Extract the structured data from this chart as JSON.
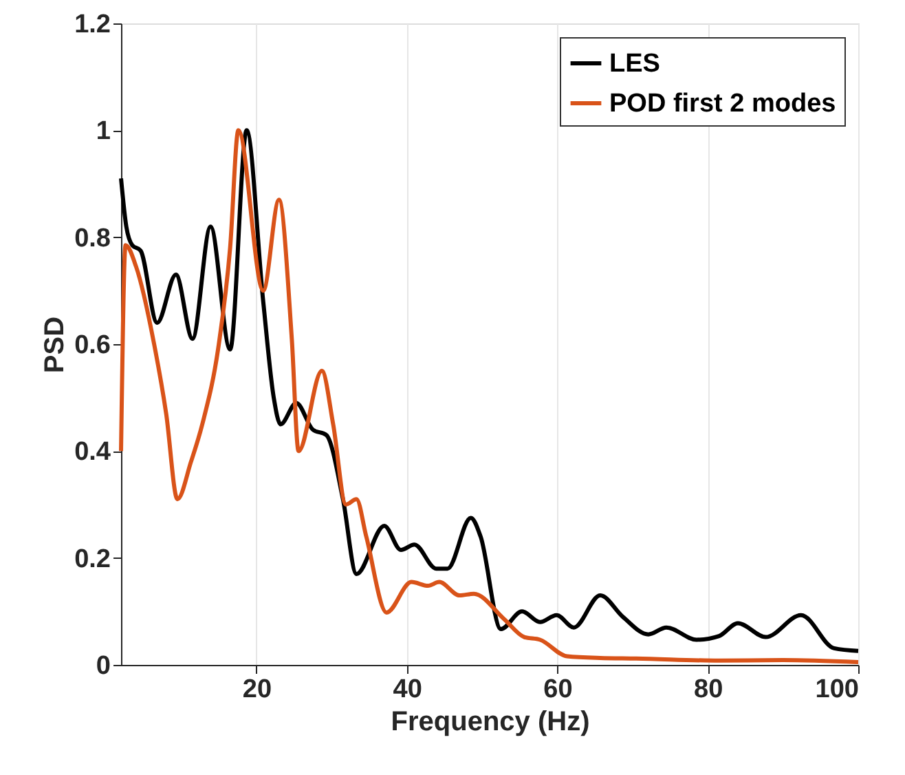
{
  "chart_data": {
    "type": "line",
    "xlabel": "Frequency (Hz)",
    "ylabel": "PSD",
    "xlim": [
      2,
      100
    ],
    "ylim": [
      0,
      1.2
    ],
    "xticks": [
      20,
      40,
      60,
      80,
      100
    ],
    "yticks": [
      0,
      0.2,
      0.4,
      0.6,
      0.8,
      1,
      1.2
    ],
    "grid": "x",
    "legend": "top right",
    "line_style": "solid",
    "marker": "none",
    "series": [
      {
        "name": "LES",
        "color": "#000000",
        "x": [
          2,
          2.7,
          3.5,
          4.6,
          6.8,
          9.3,
          11.5,
          13.9,
          16.5,
          18.7,
          20.9,
          22.3,
          23.2,
          25.3,
          27.5,
          29.3,
          31.5,
          33.3,
          37,
          39.2,
          41,
          43.9,
          45.4,
          48.5,
          49.8,
          52.5,
          55.3,
          57.7,
          59.9,
          62.2,
          65.7,
          68.7,
          72.1,
          74.5,
          78.5,
          81.5,
          84,
          87.7,
          92.4,
          96.8,
          100
        ],
        "values": [
          0.91,
          0.82,
          0.785,
          0.775,
          0.64,
          0.73,
          0.61,
          0.82,
          0.59,
          1.0,
          0.68,
          0.5,
          0.45,
          0.49,
          0.44,
          0.43,
          0.31,
          0.17,
          0.26,
          0.215,
          0.225,
          0.18,
          0.18,
          0.275,
          0.24,
          0.067,
          0.1,
          0.08,
          0.093,
          0.07,
          0.13,
          0.09,
          0.057,
          0.07,
          0.047,
          0.054,
          0.078,
          0.052,
          0.093,
          0.031,
          0.026
        ]
      },
      {
        "name": "POD first 2 modes",
        "color": "#d95319",
        "x": [
          2,
          2.6,
          4,
          6.4,
          8,
          9.5,
          11.3,
          12.8,
          15,
          16.5,
          17.6,
          20.9,
          23,
          24.7,
          25.6,
          28.7,
          30.2,
          31.9,
          33.3,
          34.6,
          37.3,
          40.6,
          42.8,
          44.3,
          47,
          48.9,
          52.9,
          55.6,
          57.7,
          61.3,
          65.7,
          70.5,
          81.5,
          90,
          100
        ],
        "values": [
          0.4,
          0.785,
          0.745,
          0.6,
          0.47,
          0.31,
          0.38,
          0.45,
          0.6,
          0.78,
          1.0,
          0.7,
          0.87,
          0.61,
          0.4,
          0.55,
          0.45,
          0.3,
          0.31,
          0.24,
          0.098,
          0.155,
          0.148,
          0.155,
          0.13,
          0.133,
          0.086,
          0.052,
          0.047,
          0.016,
          0.013,
          0.012,
          0.008,
          0.009,
          0.005
        ]
      }
    ]
  }
}
